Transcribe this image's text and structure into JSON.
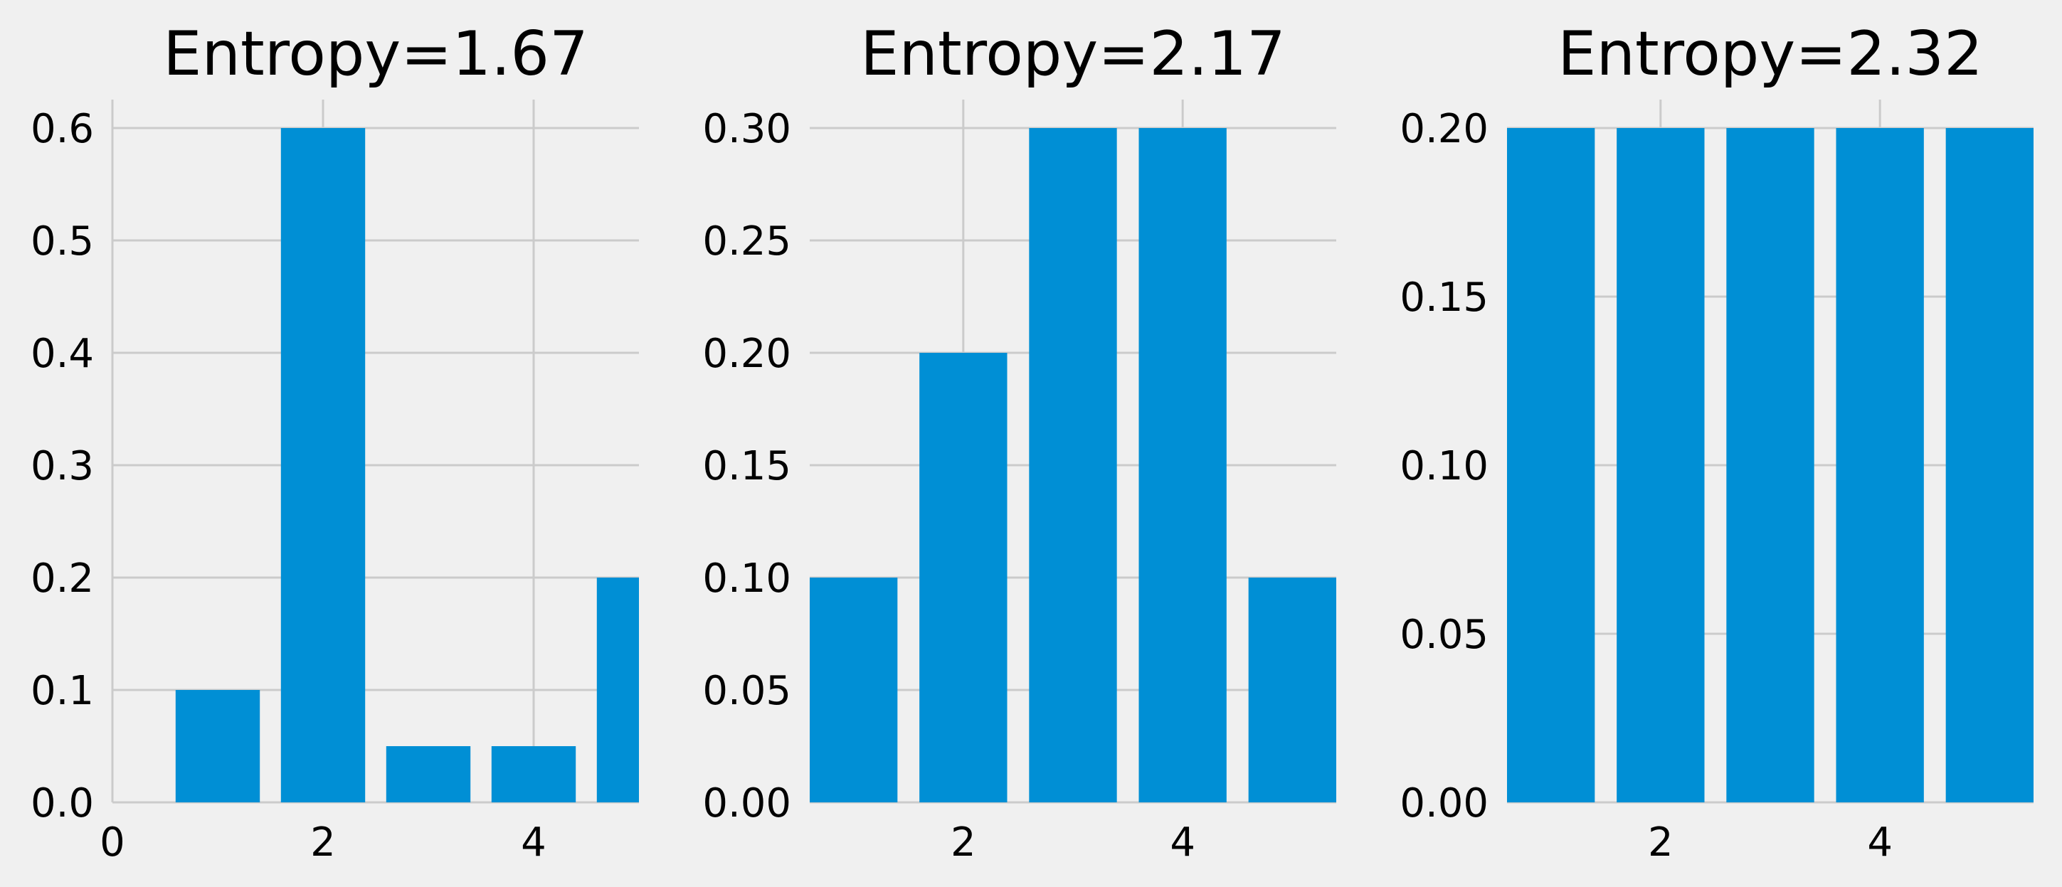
{
  "figure": {
    "background": "#f0f0f0",
    "grid_color": "#cbcbcb",
    "bar_color": "#008fd5"
  },
  "chart_data": [
    {
      "type": "bar",
      "title": "Entropy=1.67",
      "x": [
        1,
        2,
        3,
        4,
        5
      ],
      "values": [
        0.1,
        0.6,
        0.05,
        0.05,
        0.2
      ],
      "xlim": [
        0,
        5
      ],
      "ylim": [
        0,
        0.6
      ],
      "xticks": [
        0,
        2,
        4
      ],
      "xtick_labels": [
        "0",
        "2",
        "4"
      ],
      "yticks": [
        0,
        0.1,
        0.2,
        0.3,
        0.4,
        0.5,
        0.6
      ],
      "ytick_labels": [
        "0.0",
        "0.1",
        "0.2",
        "0.3",
        "0.4",
        "0.5",
        "0.6"
      ],
      "xlabel": "",
      "ylabel": "",
      "grid": true
    },
    {
      "type": "bar",
      "title": "Entropy=2.17",
      "x": [
        1,
        2,
        3,
        4,
        5
      ],
      "values": [
        0.1,
        0.2,
        0.3,
        0.3,
        0.1
      ],
      "xlim": [
        0.6,
        5.4
      ],
      "ylim": [
        0,
        0.3
      ],
      "xticks": [
        2,
        4
      ],
      "xtick_labels": [
        "2",
        "4"
      ],
      "yticks": [
        0,
        0.05,
        0.1,
        0.15,
        0.2,
        0.25,
        0.3
      ],
      "ytick_labels": [
        "0.00",
        "0.05",
        "0.10",
        "0.15",
        "0.20",
        "0.25",
        "0.30"
      ],
      "xlabel": "",
      "ylabel": "",
      "grid": true
    },
    {
      "type": "bar",
      "title": "Entropy=2.32",
      "x": [
        1,
        2,
        3,
        4,
        5
      ],
      "values": [
        0.2,
        0.2,
        0.2,
        0.2,
        0.2
      ],
      "xlim": [
        0.6,
        5.4
      ],
      "ylim": [
        0,
        0.2
      ],
      "xticks": [
        2,
        4
      ],
      "xtick_labels": [
        "2",
        "4"
      ],
      "yticks": [
        0,
        0.05,
        0.1,
        0.15,
        0.2
      ],
      "ytick_labels": [
        "0.00",
        "0.05",
        "0.10",
        "0.15",
        "0.20"
      ],
      "xlabel": "",
      "ylabel": "",
      "grid": true
    }
  ]
}
